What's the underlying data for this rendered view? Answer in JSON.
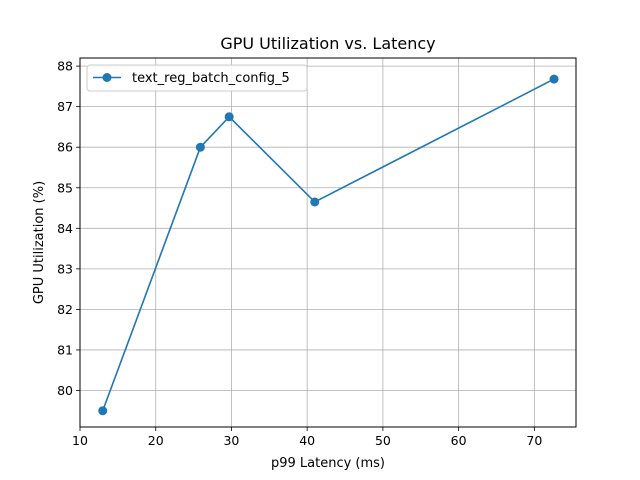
{
  "chart_data": {
    "type": "line",
    "title": "GPU Utilization vs. Latency",
    "xlabel": "p99 Latency (ms)",
    "ylabel": "GPU Utilization (%)",
    "xlim": [
      10,
      75.5
    ],
    "ylim": [
      79.1,
      88.2
    ],
    "xticks": [
      10,
      20,
      30,
      40,
      50,
      60,
      70
    ],
    "yticks": [
      80,
      81,
      82,
      83,
      84,
      85,
      86,
      87,
      88
    ],
    "grid": true,
    "legend_position": "top-left",
    "series": [
      {
        "name": "text_reg_batch_config_5",
        "color": "#1f77b4",
        "marker": "circle",
        "x": [
          13.0,
          25.9,
          29.7,
          41.0,
          72.6
        ],
        "y": [
          79.5,
          86.0,
          86.75,
          84.65,
          87.68
        ]
      }
    ]
  }
}
